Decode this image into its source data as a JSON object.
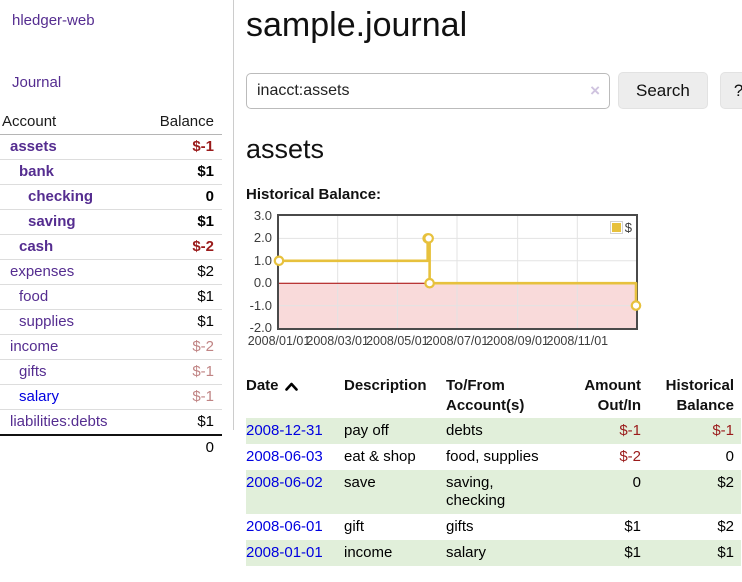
{
  "brand": "hledger-web",
  "sidebar": {
    "journal_link": "Journal",
    "header": {
      "account": "Account",
      "balance": "Balance"
    },
    "accounts": [
      {
        "name": "assets",
        "balance": "$-1"
      },
      {
        "name": "bank",
        "balance": "$1"
      },
      {
        "name": "checking",
        "balance": "0"
      },
      {
        "name": "saving",
        "balance": "$1"
      },
      {
        "name": "cash",
        "balance": "$-2"
      },
      {
        "name": "expenses",
        "balance": "$2"
      },
      {
        "name": "food",
        "balance": "$1"
      },
      {
        "name": "supplies",
        "balance": "$1"
      },
      {
        "name": "income",
        "balance": "$-2"
      },
      {
        "name": "gifts",
        "balance": "$-1"
      },
      {
        "name": "salary",
        "balance": "$-1"
      },
      {
        "name": "liabilities:debts",
        "balance": "$1"
      }
    ],
    "total": "0"
  },
  "main": {
    "title": "sample.journal",
    "search": {
      "value": "inacct:assets",
      "clear_icon": "×",
      "button_label": "Search",
      "help_label": "?"
    },
    "heading": "assets",
    "chart_title": "Historical Balance:"
  },
  "chart_data": {
    "type": "line",
    "step": true,
    "title": "Historical Balance:",
    "series": [
      {
        "name": "$",
        "color": "#e7c13d",
        "points": [
          [
            "2008/01/01",
            1
          ],
          [
            "2008/06/01",
            2
          ],
          [
            "2008/06/02",
            2
          ],
          [
            "2008/06/03",
            0
          ],
          [
            "2008/12/31",
            -1
          ]
        ]
      }
    ],
    "x_range": [
      "2008/01/01",
      "2008/12/31"
    ],
    "ylim": [
      -2,
      3
    ],
    "y_ticks": [
      3,
      2,
      1,
      0,
      -1,
      -2
    ],
    "x_ticks": [
      "2008/01/01",
      "2008/03/01",
      "2008/05/01",
      "2008/07/01",
      "2008/09/01",
      "2008/11/01"
    ],
    "legend_position": "top-right",
    "grid": true,
    "colors": {
      "grid": "#e3e3e3",
      "zero_line": "#a40000",
      "negative_region": "#f9dada",
      "border": "#4a4a4a"
    }
  },
  "register": {
    "columns": {
      "date": "Date",
      "sort_icon": "chevron-up",
      "description": "Description",
      "accounts": "To/From Account(s)",
      "amount": "Amount Out/In",
      "balance": "Historical Balance"
    },
    "rows": [
      {
        "date": "2008-12-31",
        "description": "pay off",
        "accounts": "debts",
        "amount": "$-1",
        "balance": "$-1"
      },
      {
        "date": "2008-06-03",
        "description": "eat & shop",
        "accounts": "food, supplies",
        "amount": "$-2",
        "balance": "0"
      },
      {
        "date": "2008-06-02",
        "description": "save",
        "accounts": "saving, checking",
        "amount": "0",
        "balance": "$2"
      },
      {
        "date": "2008-06-01",
        "description": "gift",
        "accounts": "gifts",
        "amount": "$1",
        "balance": "$2"
      },
      {
        "date": "2008-01-01",
        "description": "income",
        "accounts": "salary",
        "amount": "$1",
        "balance": "$1"
      }
    ]
  }
}
